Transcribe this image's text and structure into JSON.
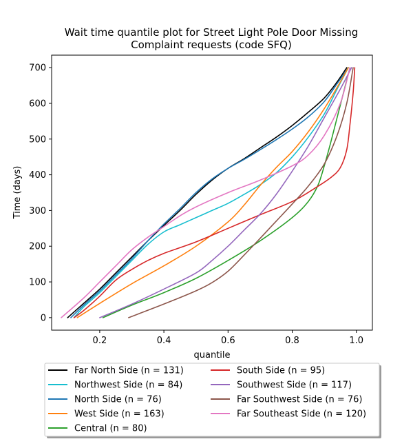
{
  "chart_data": {
    "type": "line",
    "title": [
      "Wait time quantile plot for Street Light Pole Door Missing",
      "Complaint  requests (code SFQ)"
    ],
    "xlabel": "quantile",
    "ylabel": "Time (days)",
    "xlim": [
      0.05,
      1.05
    ],
    "ylim": [
      -35,
      735
    ],
    "xticks": [
      0.2,
      0.4,
      0.6,
      0.8,
      1.0
    ],
    "xtick_labels": [
      "0.2",
      "0.4",
      "0.6",
      "0.8",
      "1.0"
    ],
    "yticks": [
      0,
      100,
      200,
      300,
      400,
      500,
      600,
      700
    ],
    "ytick_labels": [
      "0",
      "100",
      "200",
      "300",
      "400",
      "500",
      "600",
      "700"
    ],
    "grid": false,
    "legend_placement": "below",
    "series": [
      {
        "name": "Far North Side (n = 131)",
        "color": "#000000",
        "points": [
          [
            0.1,
            0
          ],
          [
            0.15,
            40
          ],
          [
            0.2,
            80
          ],
          [
            0.25,
            125
          ],
          [
            0.3,
            170
          ],
          [
            0.35,
            215
          ],
          [
            0.4,
            258
          ],
          [
            0.45,
            300
          ],
          [
            0.5,
            345
          ],
          [
            0.55,
            385
          ],
          [
            0.6,
            418
          ],
          [
            0.65,
            445
          ],
          [
            0.7,
            475
          ],
          [
            0.75,
            505
          ],
          [
            0.8,
            538
          ],
          [
            0.85,
            575
          ],
          [
            0.9,
            615
          ],
          [
            0.94,
            660
          ],
          [
            0.97,
            700
          ]
        ]
      },
      {
        "name": "Northwest Side (n = 84)",
        "color": "#17becf",
        "points": [
          [
            0.12,
            0
          ],
          [
            0.15,
            30
          ],
          [
            0.2,
            70
          ],
          [
            0.25,
            115
          ],
          [
            0.3,
            160
          ],
          [
            0.35,
            205
          ],
          [
            0.4,
            240
          ],
          [
            0.45,
            260
          ],
          [
            0.5,
            280
          ],
          [
            0.55,
            300
          ],
          [
            0.6,
            320
          ],
          [
            0.65,
            345
          ],
          [
            0.7,
            372
          ],
          [
            0.75,
            405
          ],
          [
            0.8,
            450
          ],
          [
            0.85,
            505
          ],
          [
            0.9,
            570
          ],
          [
            0.94,
            640
          ],
          [
            0.975,
            700
          ]
        ]
      },
      {
        "name": "North Side (n = 76)",
        "color": "#1f77b4",
        "points": [
          [
            0.11,
            0
          ],
          [
            0.15,
            35
          ],
          [
            0.2,
            75
          ],
          [
            0.25,
            120
          ],
          [
            0.3,
            165
          ],
          [
            0.35,
            215
          ],
          [
            0.4,
            262
          ],
          [
            0.45,
            305
          ],
          [
            0.5,
            350
          ],
          [
            0.55,
            388
          ],
          [
            0.6,
            418
          ],
          [
            0.65,
            443
          ],
          [
            0.7,
            470
          ],
          [
            0.75,
            498
          ],
          [
            0.8,
            528
          ],
          [
            0.85,
            562
          ],
          [
            0.9,
            605
          ],
          [
            0.94,
            655
          ],
          [
            0.975,
            700
          ]
        ]
      },
      {
        "name": "West Side (n = 163)",
        "color": "#ff7f0e",
        "points": [
          [
            0.13,
            0
          ],
          [
            0.2,
            40
          ],
          [
            0.3,
            95
          ],
          [
            0.4,
            145
          ],
          [
            0.5,
            200
          ],
          [
            0.6,
            268
          ],
          [
            0.65,
            315
          ],
          [
            0.7,
            370
          ],
          [
            0.75,
            420
          ],
          [
            0.8,
            465
          ],
          [
            0.85,
            520
          ],
          [
            0.9,
            585
          ],
          [
            0.95,
            660
          ],
          [
            0.975,
            700
          ]
        ]
      },
      {
        "name": "Central (n = 80)",
        "color": "#2ca02c",
        "points": [
          [
            0.21,
            0
          ],
          [
            0.3,
            35
          ],
          [
            0.4,
            70
          ],
          [
            0.5,
            110
          ],
          [
            0.6,
            160
          ],
          [
            0.7,
            215
          ],
          [
            0.8,
            280
          ],
          [
            0.85,
            325
          ],
          [
            0.88,
            370
          ],
          [
            0.9,
            425
          ],
          [
            0.92,
            490
          ],
          [
            0.94,
            560
          ],
          [
            0.96,
            630
          ],
          [
            0.98,
            700
          ]
        ]
      },
      {
        "name": "South Side (n = 95)",
        "color": "#d62728",
        "points": [
          [
            0.12,
            0
          ],
          [
            0.15,
            20
          ],
          [
            0.2,
            60
          ],
          [
            0.25,
            105
          ],
          [
            0.3,
            135
          ],
          [
            0.35,
            160
          ],
          [
            0.4,
            180
          ],
          [
            0.5,
            212
          ],
          [
            0.6,
            250
          ],
          [
            0.7,
            288
          ],
          [
            0.8,
            325
          ],
          [
            0.87,
            362
          ],
          [
            0.92,
            392
          ],
          [
            0.95,
            420
          ],
          [
            0.97,
            470
          ],
          [
            0.98,
            540
          ],
          [
            0.99,
            630
          ],
          [
            0.995,
            700
          ]
        ]
      },
      {
        "name": "Southwest Side (n = 117)",
        "color": "#9467bd",
        "points": [
          [
            0.2,
            0
          ],
          [
            0.3,
            38
          ],
          [
            0.4,
            80
          ],
          [
            0.5,
            125
          ],
          [
            0.55,
            160
          ],
          [
            0.6,
            200
          ],
          [
            0.65,
            245
          ],
          [
            0.7,
            290
          ],
          [
            0.75,
            345
          ],
          [
            0.8,
            410
          ],
          [
            0.85,
            480
          ],
          [
            0.9,
            560
          ],
          [
            0.95,
            640
          ],
          [
            0.985,
            700
          ]
        ]
      },
      {
        "name": "Far Southwest Side (n = 76)",
        "color": "#8c564b",
        "points": [
          [
            0.29,
            0
          ],
          [
            0.4,
            38
          ],
          [
            0.5,
            75
          ],
          [
            0.55,
            98
          ],
          [
            0.6,
            130
          ],
          [
            0.65,
            175
          ],
          [
            0.7,
            222
          ],
          [
            0.75,
            270
          ],
          [
            0.8,
            318
          ],
          [
            0.85,
            368
          ],
          [
            0.9,
            430
          ],
          [
            0.94,
            510
          ],
          [
            0.97,
            600
          ],
          [
            0.99,
            700
          ]
        ]
      },
      {
        "name": "Far Southeast Side (n = 120)",
        "color": "#e377c2",
        "points": [
          [
            0.08,
            0
          ],
          [
            0.15,
            55
          ],
          [
            0.2,
            100
          ],
          [
            0.25,
            145
          ],
          [
            0.3,
            190
          ],
          [
            0.35,
            225
          ],
          [
            0.4,
            255
          ],
          [
            0.45,
            285
          ],
          [
            0.5,
            310
          ],
          [
            0.6,
            350
          ],
          [
            0.7,
            385
          ],
          [
            0.8,
            425
          ],
          [
            0.85,
            455
          ],
          [
            0.9,
            510
          ],
          [
            0.95,
            600
          ],
          [
            0.98,
            700
          ]
        ]
      }
    ]
  }
}
